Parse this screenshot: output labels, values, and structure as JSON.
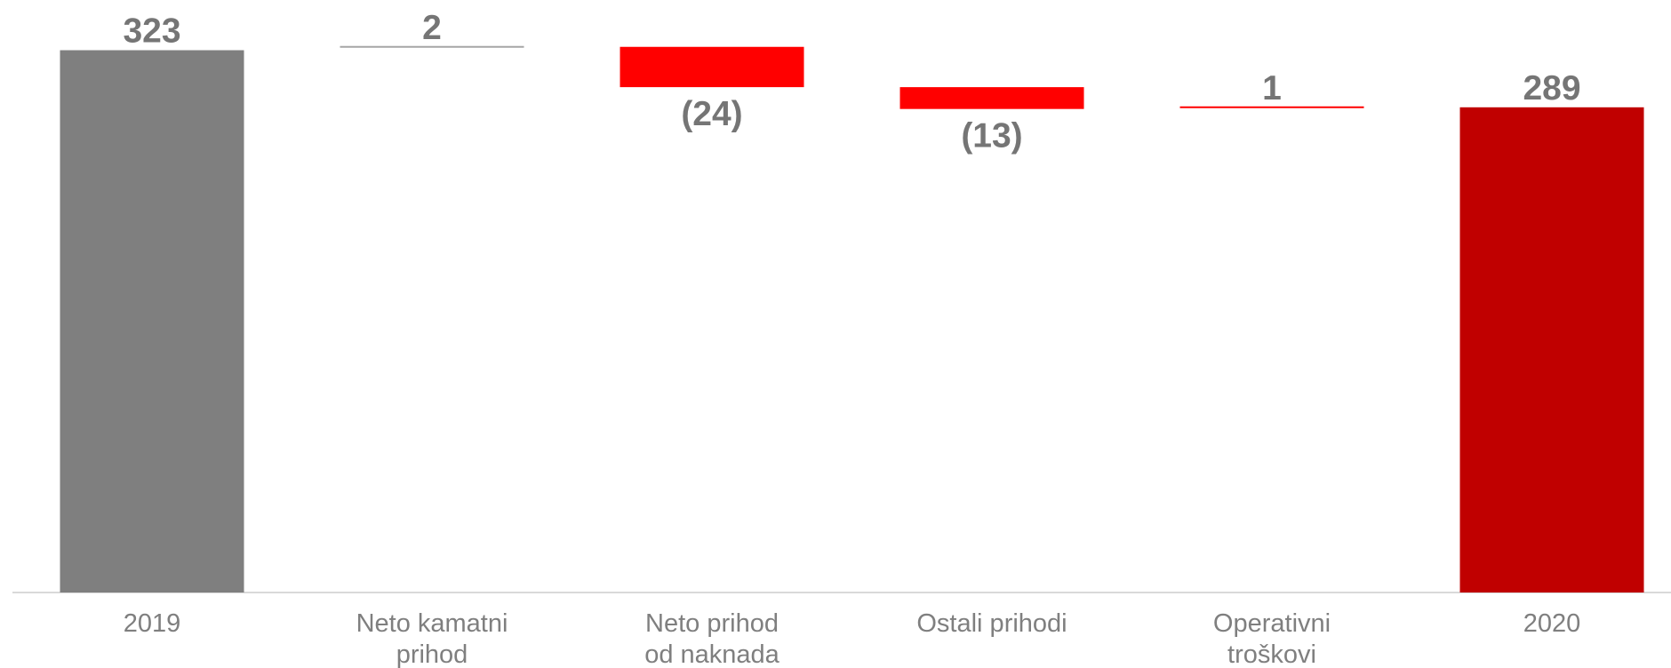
{
  "chart_data": {
    "type": "bar",
    "subtype": "waterfall",
    "title": "",
    "xlabel": "",
    "ylabel": "",
    "ylim": [
      0,
      330
    ],
    "grid": false,
    "legend": "none",
    "categories": [
      [
        "2019"
      ],
      [
        "Neto kamatni",
        "prihod"
      ],
      [
        "Neto prihod",
        "od naknada"
      ],
      [
        "Ostali prihodi"
      ],
      [
        "Operativni",
        "troškovi"
      ],
      [
        "2020"
      ]
    ],
    "values": [
      323,
      2,
      -24,
      -13,
      1,
      289
    ],
    "kinds": [
      "total",
      "delta",
      "delta",
      "delta",
      "delta",
      "total"
    ],
    "data_labels": [
      "323",
      "2",
      "(24)",
      "(13)",
      "1",
      "289"
    ],
    "colors": {
      "start_total": "#7f7f7f",
      "end_total": "#c00000",
      "decrease": "#ff0000",
      "increase_line": "#a6a6a6",
      "small_increase_line": "#ff0000",
      "axis": "#d9d9d9"
    }
  }
}
